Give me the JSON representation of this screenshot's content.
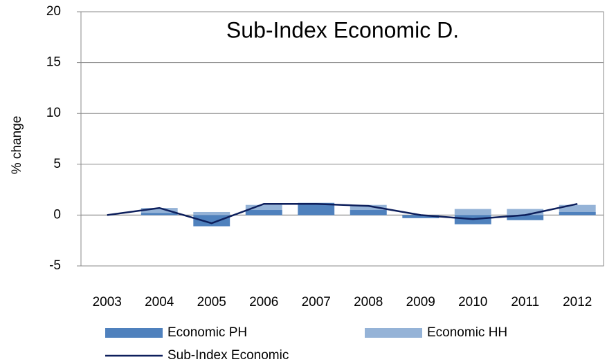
{
  "chart_data": {
    "type": "bar",
    "title": "Sub-Index Economic D.",
    "y_label": "% change",
    "categories": [
      "2003",
      "2004",
      "2005",
      "2006",
      "2007",
      "2008",
      "2009",
      "2010",
      "2011",
      "2012"
    ],
    "series": [
      {
        "name": "Economic PH",
        "color": "#4f81bd",
        "type": "bar",
        "values": [
          0,
          0.2,
          -1.1,
          0.5,
          1.2,
          0.5,
          -0.3,
          -0.9,
          -0.5,
          0.3
        ]
      },
      {
        "name": "Economic HH",
        "color": "#95b3d7",
        "type": "bar",
        "values": [
          0,
          0.7,
          0.3,
          1.0,
          0.1,
          1.0,
          -0.1,
          0.6,
          0.6,
          1.0
        ]
      },
      {
        "name": "Sub-Index  Economic",
        "color": "#0d1f5c",
        "type": "line",
        "values": [
          0,
          0.7,
          -0.8,
          1.1,
          1.1,
          0.9,
          0,
          -0.4,
          0,
          1.1
        ]
      }
    ],
    "ylim": [
      -5,
      20
    ],
    "yticks": [
      -5,
      0,
      5,
      10,
      15,
      20
    ],
    "grid": true,
    "legend": "bottom"
  }
}
